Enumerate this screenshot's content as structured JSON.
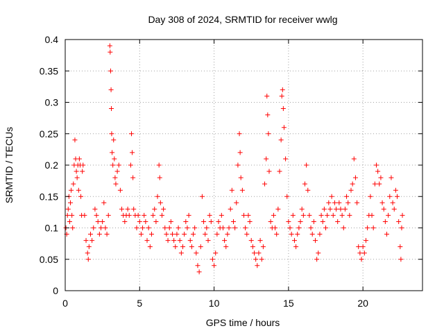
{
  "chart_data": {
    "type": "scatter",
    "title": "Day 308 of 2024, SRMTID for receiver wwlg",
    "xlabel": "GPS time / hours",
    "ylabel": "SRMTID / TECUs",
    "xlim": [
      0,
      24
    ],
    "ylim": [
      0,
      0.4
    ],
    "xticks": [
      0,
      5,
      10,
      15,
      20
    ],
    "xtick_labels": [
      "0",
      "5",
      "10",
      "15",
      "20"
    ],
    "yticks": [
      0,
      0.05,
      0.1,
      0.15,
      0.2,
      0.25,
      0.3,
      0.35,
      0.4
    ],
    "ytick_labels": [
      "0",
      "0.05",
      "0.1",
      "0.15",
      "0.2",
      "0.25",
      "0.3",
      "0.35",
      "0.4"
    ],
    "grid": true,
    "marker": "plus",
    "series": [
      {
        "name": "SRMTID",
        "color": "#ff0000",
        "points": [
          [
            0.05,
            0.1
          ],
          [
            0.1,
            0.09
          ],
          [
            0.15,
            0.12
          ],
          [
            0.2,
            0.13
          ],
          [
            0.25,
            0.15
          ],
          [
            0.3,
            0.11
          ],
          [
            0.35,
            0.14
          ],
          [
            0.4,
            0.16
          ],
          [
            0.45,
            0.12
          ],
          [
            0.5,
            0.1
          ],
          [
            0.55,
            0.17
          ],
          [
            0.6,
            0.2
          ],
          [
            0.65,
            0.24
          ],
          [
            0.7,
            0.21
          ],
          [
            0.75,
            0.19
          ],
          [
            0.8,
            0.18
          ],
          [
            0.85,
            0.2
          ],
          [
            0.9,
            0.16
          ],
          [
            0.95,
            0.21
          ],
          [
            1.0,
            0.2
          ],
          [
            1.05,
            0.15
          ],
          [
            1.1,
            0.12
          ],
          [
            1.15,
            0.19
          ],
          [
            1.2,
            0.2
          ],
          [
            1.3,
            0.12
          ],
          [
            1.4,
            0.08
          ],
          [
            1.5,
            0.06
          ],
          [
            1.55,
            0.05
          ],
          [
            1.6,
            0.07
          ],
          [
            1.7,
            0.09
          ],
          [
            1.8,
            0.08
          ],
          [
            1.9,
            0.1
          ],
          [
            2.0,
            0.13
          ],
          [
            2.1,
            0.12
          ],
          [
            2.2,
            0.11
          ],
          [
            2.3,
            0.09
          ],
          [
            2.4,
            0.1
          ],
          [
            2.5,
            0.11
          ],
          [
            2.6,
            0.14
          ],
          [
            2.7,
            0.1
          ],
          [
            2.8,
            0.09
          ],
          [
            2.9,
            0.12
          ],
          [
            3.0,
            0.39
          ],
          [
            3.02,
            0.38
          ],
          [
            3.05,
            0.35
          ],
          [
            3.08,
            0.32
          ],
          [
            3.1,
            0.29
          ],
          [
            3.12,
            0.25
          ],
          [
            3.15,
            0.22
          ],
          [
            3.2,
            0.2
          ],
          [
            3.25,
            0.24
          ],
          [
            3.3,
            0.21
          ],
          [
            3.35,
            0.18
          ],
          [
            3.4,
            0.17
          ],
          [
            3.5,
            0.19
          ],
          [
            3.6,
            0.2
          ],
          [
            3.7,
            0.16
          ],
          [
            3.8,
            0.13
          ],
          [
            3.9,
            0.12
          ],
          [
            4.0,
            0.11
          ],
          [
            4.1,
            0.12
          ],
          [
            4.2,
            0.13
          ],
          [
            4.3,
            0.12
          ],
          [
            4.4,
            0.2
          ],
          [
            4.45,
            0.25
          ],
          [
            4.5,
            0.22
          ],
          [
            4.55,
            0.18
          ],
          [
            4.6,
            0.13
          ],
          [
            4.7,
            0.12
          ],
          [
            4.8,
            0.1
          ],
          [
            4.9,
            0.12
          ],
          [
            5.0,
            0.11
          ],
          [
            5.1,
            0.09
          ],
          [
            5.2,
            0.1
          ],
          [
            5.3,
            0.12
          ],
          [
            5.4,
            0.11
          ],
          [
            5.5,
            0.08
          ],
          [
            5.6,
            0.1
          ],
          [
            5.7,
            0.07
          ],
          [
            5.8,
            0.09
          ],
          [
            5.9,
            0.12
          ],
          [
            6.0,
            0.13
          ],
          [
            6.1,
            0.11
          ],
          [
            6.2,
            0.15
          ],
          [
            6.3,
            0.2
          ],
          [
            6.35,
            0.18
          ],
          [
            6.4,
            0.14
          ],
          [
            6.5,
            0.12
          ],
          [
            6.6,
            0.13
          ],
          [
            6.7,
            0.1
          ],
          [
            6.8,
            0.09
          ],
          [
            6.9,
            0.08
          ],
          [
            7.0,
            0.1
          ],
          [
            7.1,
            0.11
          ],
          [
            7.2,
            0.09
          ],
          [
            7.3,
            0.08
          ],
          [
            7.4,
            0.07
          ],
          [
            7.5,
            0.09
          ],
          [
            7.6,
            0.1
          ],
          [
            7.7,
            0.08
          ],
          [
            7.8,
            0.06
          ],
          [
            7.9,
            0.07
          ],
          [
            8.0,
            0.09
          ],
          [
            8.1,
            0.11
          ],
          [
            8.2,
            0.1
          ],
          [
            8.3,
            0.12
          ],
          [
            8.4,
            0.08
          ],
          [
            8.5,
            0.07
          ],
          [
            8.6,
            0.09
          ],
          [
            8.7,
            0.1
          ],
          [
            8.8,
            0.06
          ],
          [
            8.9,
            0.04
          ],
          [
            9.0,
            0.03
          ],
          [
            9.1,
            0.07
          ],
          [
            9.2,
            0.15
          ],
          [
            9.3,
            0.11
          ],
          [
            9.4,
            0.09
          ],
          [
            9.5,
            0.1
          ],
          [
            9.6,
            0.08
          ],
          [
            9.7,
            0.12
          ],
          [
            9.8,
            0.11
          ],
          [
            9.9,
            0.05
          ],
          [
            10.0,
            0.04
          ],
          [
            10.1,
            0.06
          ],
          [
            10.2,
            0.09
          ],
          [
            10.3,
            0.11
          ],
          [
            10.4,
            0.1
          ],
          [
            10.5,
            0.12
          ],
          [
            10.6,
            0.1
          ],
          [
            10.7,
            0.08
          ],
          [
            10.8,
            0.07
          ],
          [
            10.9,
            0.09
          ],
          [
            11.0,
            0.1
          ],
          [
            11.1,
            0.13
          ],
          [
            11.2,
            0.16
          ],
          [
            11.3,
            0.11
          ],
          [
            11.4,
            0.1
          ],
          [
            11.5,
            0.14
          ],
          [
            11.6,
            0.2
          ],
          [
            11.7,
            0.25
          ],
          [
            11.75,
            0.22
          ],
          [
            11.8,
            0.18
          ],
          [
            11.9,
            0.16
          ],
          [
            12.0,
            0.12
          ],
          [
            12.1,
            0.1
          ],
          [
            12.2,
            0.09
          ],
          [
            12.3,
            0.12
          ],
          [
            12.4,
            0.11
          ],
          [
            12.5,
            0.08
          ],
          [
            12.6,
            0.07
          ],
          [
            12.7,
            0.06
          ],
          [
            12.8,
            0.05
          ],
          [
            12.9,
            0.04
          ],
          [
            13.0,
            0.06
          ],
          [
            13.1,
            0.08
          ],
          [
            13.2,
            0.05
          ],
          [
            13.3,
            0.07
          ],
          [
            13.4,
            0.17
          ],
          [
            13.5,
            0.21
          ],
          [
            13.55,
            0.31
          ],
          [
            13.6,
            0.28
          ],
          [
            13.65,
            0.25
          ],
          [
            13.7,
            0.19
          ],
          [
            13.8,
            0.11
          ],
          [
            13.9,
            0.1
          ],
          [
            14.0,
            0.12
          ],
          [
            14.1,
            0.1
          ],
          [
            14.2,
            0.09
          ],
          [
            14.3,
            0.13
          ],
          [
            14.4,
            0.19
          ],
          [
            14.5,
            0.24
          ],
          [
            14.55,
            0.31
          ],
          [
            14.6,
            0.32
          ],
          [
            14.65,
            0.29
          ],
          [
            14.7,
            0.26
          ],
          [
            14.8,
            0.21
          ],
          [
            14.9,
            0.15
          ],
          [
            15.0,
            0.11
          ],
          [
            15.1,
            0.1
          ],
          [
            15.2,
            0.09
          ],
          [
            15.3,
            0.12
          ],
          [
            15.4,
            0.08
          ],
          [
            15.5,
            0.07
          ],
          [
            15.6,
            0.09
          ],
          [
            15.7,
            0.1
          ],
          [
            15.8,
            0.11
          ],
          [
            15.9,
            0.13
          ],
          [
            16.0,
            0.12
          ],
          [
            16.1,
            0.17
          ],
          [
            16.2,
            0.2
          ],
          [
            16.3,
            0.16
          ],
          [
            16.4,
            0.12
          ],
          [
            16.5,
            0.1
          ],
          [
            16.6,
            0.09
          ],
          [
            16.7,
            0.11
          ],
          [
            16.8,
            0.08
          ],
          [
            16.9,
            0.05
          ],
          [
            17.0,
            0.06
          ],
          [
            17.1,
            0.09
          ],
          [
            17.2,
            0.12
          ],
          [
            17.3,
            0.11
          ],
          [
            17.4,
            0.13
          ],
          [
            17.5,
            0.1
          ],
          [
            17.6,
            0.12
          ],
          [
            17.7,
            0.14
          ],
          [
            17.8,
            0.13
          ],
          [
            17.9,
            0.15
          ],
          [
            18.0,
            0.12
          ],
          [
            18.1,
            0.14
          ],
          [
            18.2,
            0.13
          ],
          [
            18.3,
            0.11
          ],
          [
            18.4,
            0.14
          ],
          [
            18.5,
            0.13
          ],
          [
            18.6,
            0.12
          ],
          [
            18.7,
            0.1
          ],
          [
            18.8,
            0.13
          ],
          [
            18.9,
            0.15
          ],
          [
            19.0,
            0.14
          ],
          [
            19.1,
            0.12
          ],
          [
            19.2,
            0.16
          ],
          [
            19.3,
            0.17
          ],
          [
            19.4,
            0.21
          ],
          [
            19.5,
            0.18
          ],
          [
            19.6,
            0.14
          ],
          [
            19.7,
            0.07
          ],
          [
            19.8,
            0.06
          ],
          [
            19.9,
            0.05
          ],
          [
            20.0,
            0.07
          ],
          [
            20.1,
            0.06
          ],
          [
            20.2,
            0.08
          ],
          [
            20.3,
            0.1
          ],
          [
            20.4,
            0.12
          ],
          [
            20.5,
            0.15
          ],
          [
            20.6,
            0.12
          ],
          [
            20.7,
            0.1
          ],
          [
            20.8,
            0.17
          ],
          [
            20.9,
            0.2
          ],
          [
            21.0,
            0.19
          ],
          [
            21.1,
            0.17
          ],
          [
            21.2,
            0.18
          ],
          [
            21.3,
            0.14
          ],
          [
            21.4,
            0.13
          ],
          [
            21.5,
            0.11
          ],
          [
            21.6,
            0.09
          ],
          [
            21.7,
            0.12
          ],
          [
            21.8,
            0.15
          ],
          [
            21.9,
            0.18
          ],
          [
            22.0,
            0.14
          ],
          [
            22.1,
            0.13
          ],
          [
            22.2,
            0.16
          ],
          [
            22.3,
            0.15
          ],
          [
            22.4,
            0.11
          ],
          [
            22.5,
            0.07
          ],
          [
            22.55,
            0.05
          ],
          [
            22.6,
            0.1
          ],
          [
            22.65,
            0.12
          ]
        ]
      }
    ]
  }
}
